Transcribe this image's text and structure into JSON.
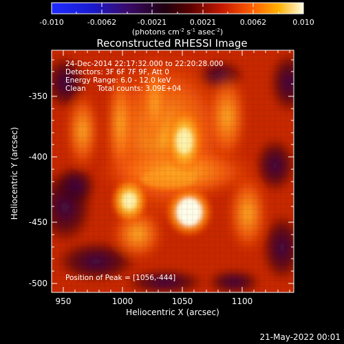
{
  "colorbar": {
    "ticks": [
      "-0.010",
      "-0.0062",
      "-0.0021",
      "0.0021",
      "0.0062",
      "0.010"
    ],
    "units_prefix": "(photons cm",
    "units_exp1": "-2",
    "units_mid": " s",
    "units_exp2": "-1",
    "units_mid2": " asec",
    "units_exp3": "-2",
    "units_suffix": ")"
  },
  "title": "Reconstructed RHESSI Image",
  "info": {
    "line1": "24-Dec-2014 22:17:32.000 to 22:20:28.000",
    "line2": "Detectors: 3F 6F 7F 9F, Att 0",
    "line3": "Energy Range: 6.0 - 12.0 keV",
    "line4": "Clean     Total counts: 3.09E+04"
  },
  "peak": "Position of Peak = [1056,-444]",
  "x_axis": {
    "label": "Heliocentric X (arcsec)",
    "ticks": [
      "950",
      "1000",
      "1050",
      "1100"
    ]
  },
  "y_axis": {
    "label": "Heliocentric Y (arcsec)",
    "ticks": [
      "-350",
      "-400",
      "-450",
      "-500"
    ]
  },
  "footer_date": "21-May-2022 00:01",
  "colors": {
    "background": "#000000",
    "text": "#ffffff"
  }
}
